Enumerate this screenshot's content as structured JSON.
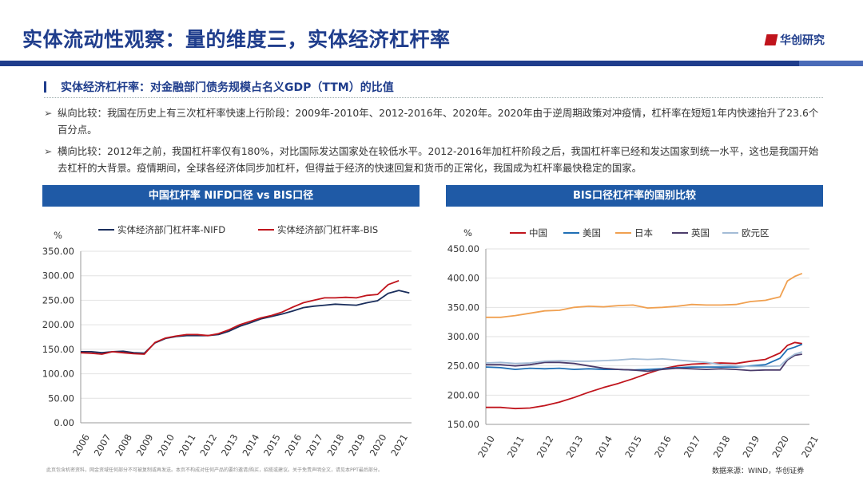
{
  "header": {
    "title": "实体流动性观察：量的维度三，实体经济杠杆率",
    "logo_text": "华创研究"
  },
  "section": {
    "subtitle": "实体经济杠杆率：对金融部门债务规模占名义GDP（TTM）的比值"
  },
  "bullets": [
    {
      "arrow": "➢",
      "text": "纵向比较：我国在历史上有三次杠杆率快速上行阶段：2009年-2010年、2012-2016年、2020年。2020年由于逆周期政策对冲疫情，杠杆率在短短1年内快速抬升了23.6个百分点。"
    },
    {
      "arrow": "➢",
      "text": "横向比较：2012年之前，我国杠杆率仅有180%，对比国际发达国家处在较低水平。2012-2016年加杠杆阶段之后，我国杠杆率已经和发达国家到统一水平，这也是我国开始去杠杆的大背景。疫情期间，全球各经济体同步加杠杆，但得益于经济的快速回复和货币的正常化，我国成为杠杆率最快稳定的国家。"
    }
  ],
  "footer": {
    "disclaimer": "此页包含机密资料，网金资域任何部分不可被复制或再发送。本页不构成对任何产品的要约邀请/购买，招揽或建议。关于免责声明全文，请见本PPT最后部分。",
    "source": "数据来源：WIND，华创证券"
  },
  "colors": {
    "navy": "#1f3d8c",
    "header_blue": "#1f5aa6",
    "red": "#c0141c"
  },
  "chart_data": [
    {
      "type": "line",
      "title": "中国杠杆率 NIFD口径 vs BIS口径",
      "ylabel": "%",
      "ylim": [
        0,
        350
      ],
      "yticks": [
        "0.00",
        "50.00",
        "100.00",
        "150.00",
        "200.00",
        "250.00",
        "300.00",
        "350.00"
      ],
      "xlim": [
        2006,
        2021.6
      ],
      "xticks": [
        "2006",
        "2007",
        "2008",
        "2009",
        "2010",
        "2011",
        "2012",
        "2013",
        "2014",
        "2015",
        "2016",
        "2017",
        "2018",
        "2019",
        "2020",
        "2021"
      ],
      "series": [
        {
          "name": "实体经济部门杠杆率-NIFD",
          "color": "#1a2e5c",
          "x": [
            2006.0,
            2006.5,
            2007.0,
            2007.5,
            2008.0,
            2008.5,
            2009.0,
            2009.5,
            2010.0,
            2010.5,
            2011.0,
            2011.5,
            2012.0,
            2012.5,
            2013.0,
            2013.5,
            2014.0,
            2014.5,
            2015.0,
            2015.5,
            2016.0,
            2016.5,
            2017.0,
            2017.5,
            2018.0,
            2018.5,
            2019.0,
            2019.5,
            2020.0,
            2020.5,
            2021.0,
            2021.5
          ],
          "y": [
            145,
            145,
            143,
            145,
            146,
            143,
            142,
            163,
            172,
            176,
            178,
            178,
            178,
            180,
            187,
            197,
            204,
            212,
            217,
            222,
            228,
            235,
            238,
            240,
            242,
            241,
            240,
            245,
            249,
            264,
            270,
            265
          ]
        },
        {
          "name": "实体经济部门杠杆率-BIS",
          "color": "#c0141c",
          "x": [
            2006.0,
            2006.5,
            2007.0,
            2007.5,
            2008.0,
            2008.5,
            2009.0,
            2009.5,
            2010.0,
            2010.5,
            2011.0,
            2011.5,
            2012.0,
            2012.5,
            2013.0,
            2013.5,
            2014.0,
            2014.5,
            2015.0,
            2015.5,
            2016.0,
            2016.5,
            2017.0,
            2017.5,
            2018.0,
            2018.5,
            2019.0,
            2019.5,
            2020.0,
            2020.5,
            2021.0
          ],
          "y": [
            143,
            142,
            140,
            145,
            143,
            141,
            140,
            164,
            173,
            177,
            180,
            180,
            178,
            182,
            190,
            200,
            207,
            214,
            219,
            226,
            236,
            245,
            250,
            255,
            255,
            256,
            255,
            260,
            262,
            282,
            290
          ]
        }
      ]
    },
    {
      "type": "line",
      "title": "BIS口径杠杆率的国别比较",
      "ylabel": "%",
      "ylim": [
        150,
        450
      ],
      "yticks": [
        "150.00",
        "200.00",
        "250.00",
        "300.00",
        "350.00",
        "400.00",
        "450.00"
      ],
      "xlim": [
        2010,
        2021
      ],
      "xticks": [
        "2010",
        "2011",
        "2012",
        "2013",
        "2014",
        "2015",
        "2016",
        "2017",
        "2018",
        "2019",
        "2020",
        "2021"
      ],
      "series": [
        {
          "name": "中国",
          "color": "#c0141c",
          "x": [
            2010.0,
            2010.5,
            2011.0,
            2011.5,
            2012.0,
            2012.5,
            2013.0,
            2013.5,
            2014.0,
            2014.5,
            2015.0,
            2015.5,
            2016.0,
            2016.5,
            2017.0,
            2017.5,
            2018.0,
            2018.5,
            2019.0,
            2019.5,
            2020.0,
            2020.25,
            2020.5,
            2020.75
          ],
          "y": [
            179,
            179,
            177,
            178,
            182,
            188,
            196,
            205,
            213,
            220,
            228,
            237,
            245,
            250,
            253,
            254,
            255,
            254,
            258,
            261,
            272,
            285,
            290,
            288
          ]
        },
        {
          "name": "美国",
          "color": "#1f6fb5",
          "x": [
            2010.0,
            2010.5,
            2011.0,
            2011.5,
            2012.0,
            2012.5,
            2013.0,
            2013.5,
            2014.0,
            2014.5,
            2015.0,
            2015.5,
            2016.0,
            2016.5,
            2017.0,
            2017.5,
            2018.0,
            2018.5,
            2019.0,
            2019.5,
            2020.0,
            2020.25,
            2020.5,
            2020.75
          ],
          "y": [
            248,
            247,
            244,
            246,
            245,
            246,
            244,
            245,
            244,
            244,
            243,
            244,
            245,
            247,
            248,
            248,
            248,
            248,
            250,
            252,
            263,
            278,
            282,
            287
          ]
        },
        {
          "name": "日本",
          "color": "#f0a050",
          "x": [
            2010.0,
            2010.5,
            2011.0,
            2011.5,
            2012.0,
            2012.5,
            2013.0,
            2013.5,
            2014.0,
            2014.5,
            2015.0,
            2015.5,
            2016.0,
            2016.5,
            2017.0,
            2017.5,
            2018.0,
            2018.5,
            2019.0,
            2019.5,
            2020.0,
            2020.25,
            2020.5,
            2020.75
          ],
          "y": [
            333,
            333,
            336,
            340,
            344,
            345,
            350,
            352,
            351,
            353,
            354,
            349,
            350,
            352,
            355,
            354,
            354,
            355,
            360,
            362,
            368,
            395,
            403,
            408
          ]
        },
        {
          "name": "英国",
          "color": "#4b3c6b",
          "x": [
            2010.0,
            2010.5,
            2011.0,
            2011.5,
            2012.0,
            2012.5,
            2013.0,
            2013.5,
            2014.0,
            2014.5,
            2015.0,
            2015.5,
            2016.0,
            2016.5,
            2017.0,
            2017.5,
            2018.0,
            2018.5,
            2019.0,
            2019.5,
            2020.0,
            2020.25,
            2020.5,
            2020.75
          ],
          "y": [
            252,
            252,
            250,
            252,
            256,
            256,
            254,
            250,
            246,
            244,
            243,
            241,
            244,
            246,
            245,
            244,
            245,
            244,
            242,
            243,
            243,
            260,
            268,
            270
          ]
        },
        {
          "name": "欧元区",
          "color": "#a3bcd6",
          "x": [
            2010.0,
            2010.5,
            2011.0,
            2011.5,
            2012.0,
            2012.5,
            2013.0,
            2013.5,
            2014.0,
            2014.5,
            2015.0,
            2015.5,
            2016.0,
            2016.5,
            2017.0,
            2017.5,
            2018.0,
            2018.5,
            2019.0,
            2019.5,
            2020.0,
            2020.25,
            2020.5,
            2020.75
          ],
          "y": [
            255,
            256,
            254,
            255,
            258,
            259,
            258,
            258,
            259,
            260,
            262,
            261,
            262,
            260,
            258,
            256,
            252,
            250,
            249,
            249,
            250,
            262,
            270,
            274
          ]
        }
      ]
    }
  ]
}
